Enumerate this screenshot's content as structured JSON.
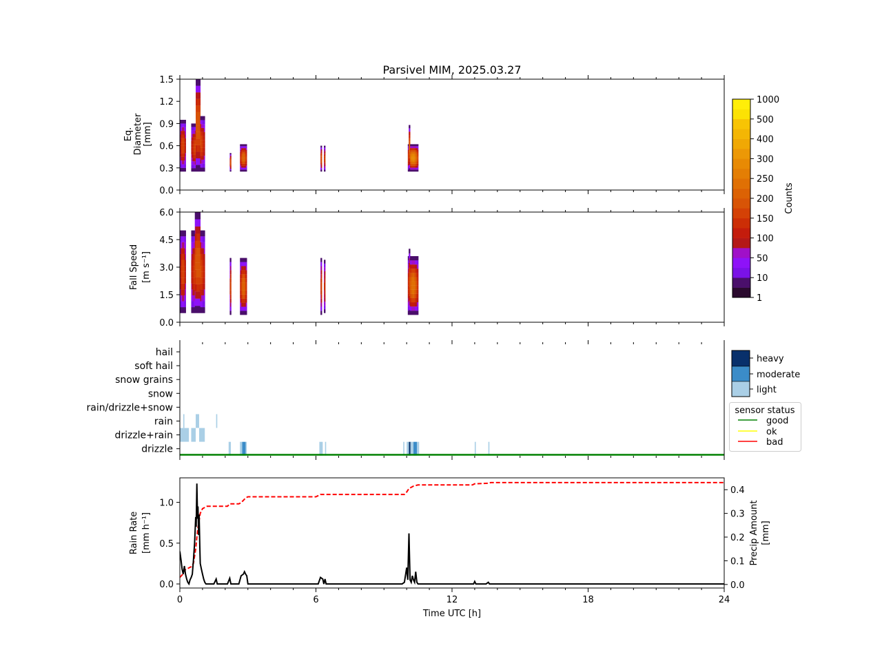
{
  "title": "Parsivel MIM, 2025.03.27",
  "colors": {
    "spectrum": [
      "#2a0a2e",
      "#4a0f6b",
      "#7a12e6",
      "#8e12f8",
      "#a010c8",
      "#b41818",
      "#c41c0c",
      "#cc2e06",
      "#d44106",
      "#d85406",
      "#dc6204",
      "#e07004",
      "#e47e04",
      "#e88a04",
      "#ec9806",
      "#f0a804",
      "#f4b604",
      "#f8c404",
      "#fce204",
      "#ffee08"
    ],
    "intensity": {
      "light": "#aacfe6",
      "moderate": "#3b8cc8",
      "heavy": "#08306b"
    },
    "status": {
      "good": "#008000",
      "ok": "#ffff00",
      "bad": "#ff0000"
    },
    "rate_line": "#000000",
    "amount_line": "#ff0000"
  },
  "chart_data": [
    {
      "type": "heatmap",
      "name": "drop-size-spectrum",
      "ylabel": [
        "Eq.",
        "Diameter",
        "[mm]"
      ],
      "xlim": [
        0,
        24
      ],
      "ylim": [
        0,
        1.5
      ],
      "yticks": [
        "0.0",
        "0.3",
        "0.6",
        "0.9",
        "1.2",
        "1.5"
      ],
      "events_hours": [
        [
          0.0,
          0.25
        ],
        [
          0.5,
          1.1
        ],
        [
          2.2,
          2.25
        ],
        [
          2.65,
          2.95
        ],
        [
          6.2,
          6.25
        ],
        [
          6.35,
          6.4
        ],
        [
          10.05,
          10.5
        ]
      ],
      "peak_diameter_mm": 1.5
    },
    {
      "type": "heatmap",
      "name": "fall-speed-spectrum",
      "ylabel": [
        "Fall Speed",
        "[m s⁻¹]"
      ],
      "xlim": [
        0,
        24
      ],
      "ylim": [
        0,
        6.0
      ],
      "yticks": [
        "0.0",
        "1.5",
        "3.0",
        "4.5",
        "6.0"
      ],
      "peak_speed_ms": 6.0
    },
    {
      "type": "heatmap",
      "name": "precip-type",
      "categories": [
        "hail",
        "soft hail",
        "snow grains",
        "snow",
        "rain/drizzle+snow",
        "rain",
        "drizzle+rain",
        "drizzle"
      ],
      "intensity_labels": [
        "heavy",
        "moderate",
        "light"
      ],
      "legend_title": "sensor status",
      "status_labels": [
        "good",
        "ok",
        "bad"
      ],
      "segments": [
        {
          "type": "rain",
          "start": 0.15,
          "end": 0.2,
          "level": "light"
        },
        {
          "type": "rain",
          "start": 0.7,
          "end": 0.85,
          "level": "light"
        },
        {
          "type": "rain",
          "start": 1.6,
          "end": 1.65,
          "level": "light"
        },
        {
          "type": "drizzle+rain",
          "start": 0.0,
          "end": 0.4,
          "level": "light"
        },
        {
          "type": "drizzle+rain",
          "start": 0.5,
          "end": 0.7,
          "level": "light"
        },
        {
          "type": "drizzle+rain",
          "start": 0.85,
          "end": 1.1,
          "level": "light"
        },
        {
          "type": "drizzle",
          "start": 2.15,
          "end": 2.25,
          "level": "light"
        },
        {
          "type": "drizzle",
          "start": 2.65,
          "end": 2.75,
          "level": "light"
        },
        {
          "type": "drizzle",
          "start": 2.75,
          "end": 2.9,
          "level": "moderate"
        },
        {
          "type": "drizzle",
          "start": 2.9,
          "end": 2.95,
          "level": "light"
        },
        {
          "type": "drizzle",
          "start": 6.15,
          "end": 6.3,
          "level": "light"
        },
        {
          "type": "drizzle",
          "start": 6.4,
          "end": 6.45,
          "level": "light"
        },
        {
          "type": "drizzle",
          "start": 9.85,
          "end": 9.9,
          "level": "light"
        },
        {
          "type": "drizzle",
          "start": 10.0,
          "end": 10.1,
          "level": "light"
        },
        {
          "type": "drizzle",
          "start": 10.1,
          "end": 10.17,
          "level": "heavy"
        },
        {
          "type": "drizzle",
          "start": 10.17,
          "end": 10.3,
          "level": "light"
        },
        {
          "type": "drizzle",
          "start": 10.3,
          "end": 10.45,
          "level": "moderate"
        },
        {
          "type": "drizzle",
          "start": 10.45,
          "end": 10.55,
          "level": "light"
        },
        {
          "type": "drizzle",
          "start": 13.0,
          "end": 13.05,
          "level": "light"
        },
        {
          "type": "drizzle",
          "start": 13.6,
          "end": 13.65,
          "level": "light"
        }
      ],
      "status": "good"
    },
    {
      "type": "line",
      "name": "rain-rate-and-amount",
      "xlabel": "Time UTC [h]",
      "xlim": [
        0,
        24
      ],
      "xticks": [
        "0",
        "6",
        "12",
        "18",
        "24"
      ],
      "ylabel": [
        "Rain Rate",
        "[mm h⁻¹]"
      ],
      "ylim": [
        -0.05,
        1.3
      ],
      "yticks": [
        "0.0",
        "0.5",
        "1.0"
      ],
      "y2label": [
        "Precip Amount",
        "[mm]"
      ],
      "y2lim": [
        -0.015,
        0.45
      ],
      "y2ticks": [
        "0.0",
        "0.1",
        "0.2",
        "0.3",
        "0.4"
      ],
      "series": [
        {
          "name": "Rain Rate",
          "x": [
            0.0,
            0.05,
            0.1,
            0.15,
            0.2,
            0.25,
            0.3,
            0.35,
            0.4,
            0.45,
            0.5,
            0.55,
            0.6,
            0.65,
            0.7,
            0.72,
            0.75,
            0.78,
            0.8,
            0.83,
            0.85,
            0.88,
            0.9,
            0.95,
            1.0,
            1.05,
            1.1,
            1.15,
            1.2,
            1.3,
            1.5,
            1.6,
            1.65,
            1.7,
            2.1,
            2.2,
            2.25,
            2.6,
            2.7,
            2.8,
            2.85,
            2.9,
            2.95,
            3.0,
            6.1,
            6.2,
            6.3,
            6.35,
            6.4,
            6.45,
            9.8,
            9.9,
            10.0,
            10.05,
            10.1,
            10.15,
            10.2,
            10.25,
            10.3,
            10.35,
            10.4,
            10.45,
            10.5,
            10.55,
            12.95,
            13.0,
            13.05,
            13.5,
            13.6,
            13.65,
            24.0
          ],
          "values": [
            0.4,
            0.3,
            0.18,
            0.12,
            0.22,
            0.12,
            0.06,
            0.02,
            0.0,
            0.05,
            0.08,
            0.12,
            0.3,
            0.5,
            0.82,
            0.7,
            1.23,
            0.8,
            0.95,
            0.6,
            0.85,
            0.45,
            0.25,
            0.18,
            0.12,
            0.06,
            0.02,
            0.0,
            0.0,
            0.0,
            0.0,
            0.06,
            0.0,
            0.0,
            0.0,
            0.07,
            0.0,
            0.0,
            0.1,
            0.12,
            0.15,
            0.12,
            0.1,
            0.0,
            0.0,
            0.08,
            0.06,
            0.0,
            0.06,
            0.0,
            0.0,
            0.02,
            0.2,
            0.05,
            0.62,
            0.05,
            0.02,
            0.1,
            0.05,
            0.02,
            0.15,
            0.02,
            0.0,
            0.0,
            0.0,
            0.03,
            0.0,
            0.0,
            0.02,
            0.0,
            0.0
          ]
        },
        {
          "name": "Precip Amount",
          "x": [
            0.0,
            0.1,
            0.2,
            0.3,
            0.4,
            0.5,
            0.6,
            0.7,
            0.75,
            0.8,
            0.85,
            0.9,
            0.95,
            1.0,
            1.1,
            1.2,
            2.1,
            2.2,
            2.6,
            2.7,
            2.8,
            2.9,
            3.0,
            3.1,
            6.0,
            6.1,
            6.2,
            6.3,
            6.4,
            6.5,
            9.9,
            10.0,
            10.1,
            10.2,
            10.3,
            10.5,
            10.6,
            12.8,
            12.9,
            13.0,
            13.6,
            13.7,
            24.0
          ],
          "values": [
            0.03,
            0.04,
            0.06,
            0.065,
            0.07,
            0.075,
            0.09,
            0.15,
            0.2,
            0.24,
            0.27,
            0.3,
            0.31,
            0.32,
            0.325,
            0.33,
            0.33,
            0.34,
            0.34,
            0.345,
            0.355,
            0.365,
            0.37,
            0.37,
            0.37,
            0.375,
            0.38,
            0.38,
            0.38,
            0.38,
            0.38,
            0.39,
            0.405,
            0.41,
            0.415,
            0.42,
            0.42,
            0.42,
            0.42,
            0.425,
            0.427,
            0.43,
            0.43
          ]
        }
      ]
    }
  ],
  "colorbars": {
    "spectrum": {
      "label": "Counts",
      "ticks": [
        "1",
        "10",
        "50",
        "100",
        "150",
        "200",
        "250",
        "300",
        "400",
        "500",
        "1000"
      ]
    }
  }
}
